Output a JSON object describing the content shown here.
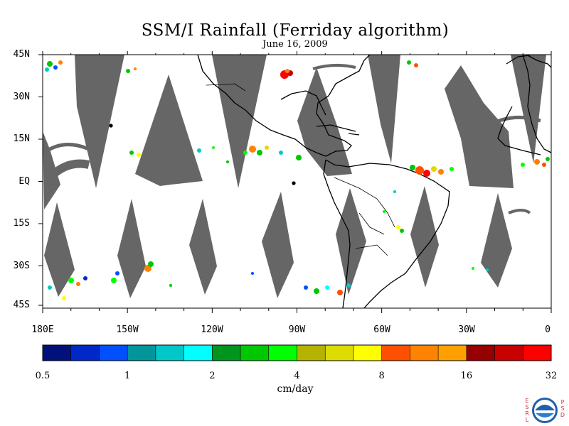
{
  "title": "SSM/I Rainfall (Ferriday algorithm)",
  "subtitle": "June 16, 2009",
  "map": {
    "lat_labels": [
      "45N",
      "30N",
      "15N",
      "EQ",
      "15S",
      "30S",
      "45S"
    ],
    "lon_labels": [
      "180E",
      "150W",
      "120W",
      "90W",
      "60W",
      "30W",
      "0"
    ],
    "missing_color": "#666666",
    "coastline_color": "#000000"
  },
  "colorbar": {
    "units": "cm/day",
    "tick_labels": [
      "0.5",
      "1",
      "2",
      "4",
      "8",
      "16",
      "32"
    ],
    "colors": [
      "#00127a",
      "#0028c8",
      "#0050ff",
      "#00969b",
      "#00c8c8",
      "#00ffff",
      "#00961e",
      "#00c800",
      "#00ff00",
      "#b4b400",
      "#dcdc00",
      "#ffff00",
      "#ff5000",
      "#ff8200",
      "#ffa000",
      "#960000",
      "#c80000",
      "#ff0000"
    ]
  },
  "logo": {
    "agency": "NOAA",
    "left_letters": [
      "E",
      "S",
      "R",
      "L"
    ],
    "right_letters": [
      "P",
      "S",
      "D"
    ]
  }
}
